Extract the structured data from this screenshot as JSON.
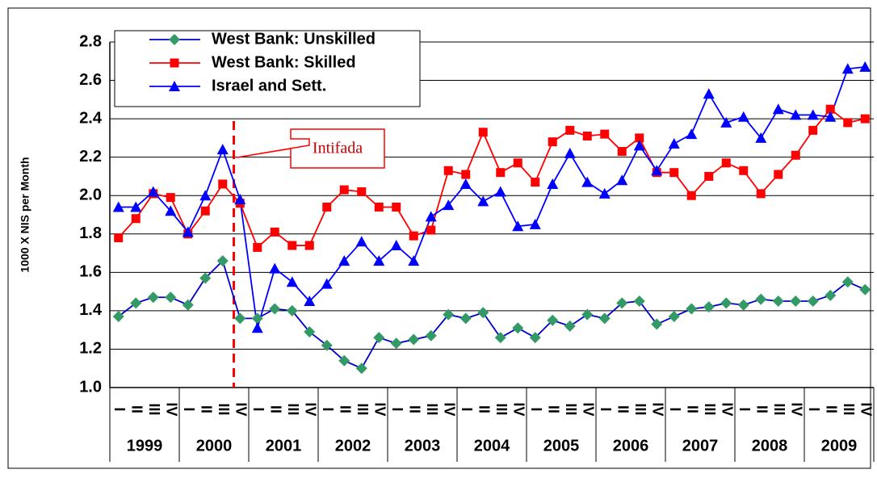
{
  "chart_data": {
    "type": "line",
    "y_label": "1000 X NIS per Month",
    "annotation": "Intifada",
    "categories": [
      "I",
      "II",
      "III",
      "IV",
      "I",
      "II",
      "III",
      "IV",
      "I",
      "II",
      "III",
      "IV",
      "I",
      "II",
      "III",
      "IV",
      "I",
      "II",
      "III",
      "IV",
      "I",
      "II",
      "III",
      "IV",
      "I",
      "II",
      "III",
      "IV",
      "I",
      "II",
      "III",
      "IV",
      "I",
      "II",
      "III",
      "IV",
      "I",
      "II",
      "III",
      "IV",
      "I",
      "II",
      "III",
      "IV"
    ],
    "groups": [
      "1999",
      "2000",
      "2001",
      "2002",
      "2003",
      "2004",
      "2005",
      "2006",
      "2007",
      "2008",
      "2009"
    ],
    "ylim": [
      1.0,
      2.8
    ],
    "yticks": [
      {
        "value": 1.0,
        "label": "1.0"
      },
      1.2,
      1.4,
      1.6,
      1.8,
      {
        "value": 2.0,
        "label": "2.0"
      },
      2.2,
      2.4,
      2.6,
      2.8
    ],
    "grid": true,
    "legend": "upper left",
    "series": [
      {
        "name": "West Bank: Unskilled",
        "color": "#0000cc",
        "marker_color": "#339966",
        "marker": "diamond",
        "values": [
          1.37,
          1.44,
          1.47,
          1.47,
          1.43,
          1.57,
          1.66,
          1.36,
          1.36,
          1.41,
          1.4,
          1.29,
          1.22,
          1.14,
          1.1,
          1.26,
          1.23,
          1.25,
          1.27,
          1.38,
          1.36,
          1.39,
          1.26,
          1.31,
          1.26,
          1.35,
          1.32,
          1.38,
          1.36,
          1.44,
          1.45,
          1.33,
          1.37,
          1.41,
          1.42,
          1.44,
          1.43,
          1.46,
          1.45,
          1.45,
          1.45,
          1.48,
          1.55,
          1.51
        ]
      },
      {
        "name": "West Bank: Skilled",
        "color": "#ff0000",
        "marker_color": "#ff0000",
        "marker": "square",
        "values": [
          1.78,
          1.88,
          2.01,
          1.99,
          1.8,
          1.92,
          2.06,
          1.96,
          1.73,
          1.81,
          1.74,
          1.74,
          1.94,
          2.03,
          2.02,
          1.94,
          1.94,
          1.79,
          1.82,
          2.13,
          2.11,
          2.33,
          2.12,
          2.17,
          2.07,
          2.28,
          2.34,
          2.31,
          2.32,
          2.23,
          2.3,
          2.12,
          2.12,
          2.0,
          2.1,
          2.17,
          2.13,
          2.01,
          2.11,
          2.21,
          2.34,
          2.45,
          2.38,
          2.4
        ]
      },
      {
        "name": "Israel and Sett.",
        "color": "#0000ff",
        "marker_color": "#0000ff",
        "marker": "triangle",
        "values": [
          1.94,
          1.94,
          2.02,
          1.92,
          1.81,
          2.0,
          2.24,
          1.98,
          1.31,
          1.62,
          1.55,
          1.45,
          1.54,
          1.66,
          1.76,
          1.66,
          1.74,
          1.66,
          1.89,
          1.95,
          2.06,
          1.97,
          2.02,
          1.84,
          1.85,
          2.06,
          2.22,
          2.07,
          2.01,
          2.08,
          2.26,
          2.13,
          2.27,
          2.32,
          2.53,
          2.38,
          2.41,
          2.3,
          2.45,
          2.42,
          2.42,
          2.41,
          2.66,
          2.67
        ]
      }
    ]
  }
}
